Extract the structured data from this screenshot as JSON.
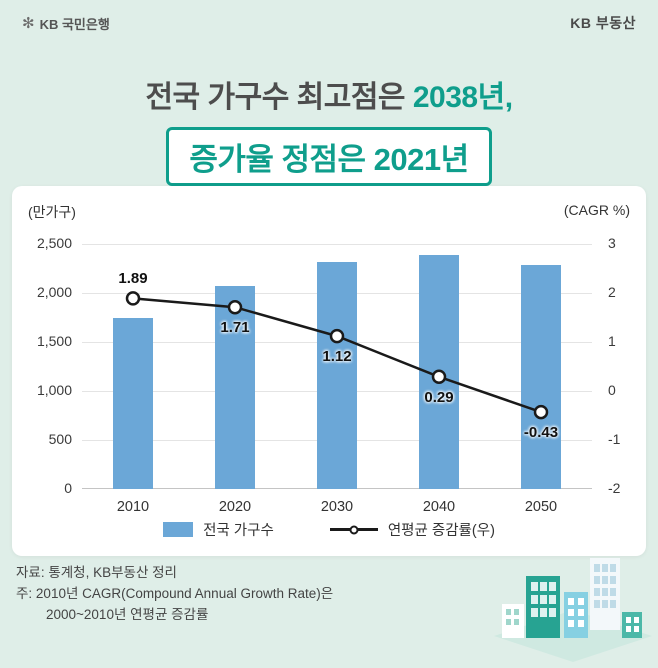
{
  "header": {
    "logo_text": "KB 국민은행",
    "brand_right": "KB 부동산",
    "logo_star_icon": "✻"
  },
  "title": {
    "line1_prefix": "전국 가구수 최고점은 ",
    "line1_highlight": "2038년,",
    "line2": "증가율 정점은 2021년"
  },
  "chart_data": {
    "type": "combo-bar-line",
    "categories": [
      "2010",
      "2020",
      "2030",
      "2040",
      "2050"
    ],
    "series": [
      {
        "name": "전국 가구수",
        "type": "bar",
        "axis": "left",
        "values": [
          1750,
          2070,
          2320,
          2385,
          2285
        ]
      },
      {
        "name": "연평균 증감률(우)",
        "type": "line",
        "axis": "right",
        "values": [
          1.89,
          1.71,
          1.12,
          0.29,
          -0.43
        ]
      }
    ],
    "point_labels": [
      "1.89",
      "1.71",
      "1.12",
      "0.29",
      "-0.43"
    ],
    "left_axis": {
      "label": "(만가구)",
      "min": 0,
      "max": 2500,
      "ticks": [
        "0",
        "500",
        "1,000",
        "1,500",
        "2,000",
        "2,500"
      ]
    },
    "right_axis": {
      "label": "(CAGR %)",
      "min": -2,
      "max": 3,
      "ticks": [
        "-2",
        "-1",
        "0",
        "1",
        "2",
        "3"
      ]
    },
    "grid": true,
    "legend_position": "bottom"
  },
  "footer": {
    "line1": "자료: 통계청, KB부동산 정리",
    "line2": "주: 2010년 CAGR(Compound Annual Growth Rate)은",
    "line3": "2000~2010년 연평균 증감률"
  },
  "colors": {
    "background": "#dfeee8",
    "accent_teal": "#0f9e8c",
    "bar_blue": "#6ba7d7",
    "line_black": "#1a1a1a"
  }
}
